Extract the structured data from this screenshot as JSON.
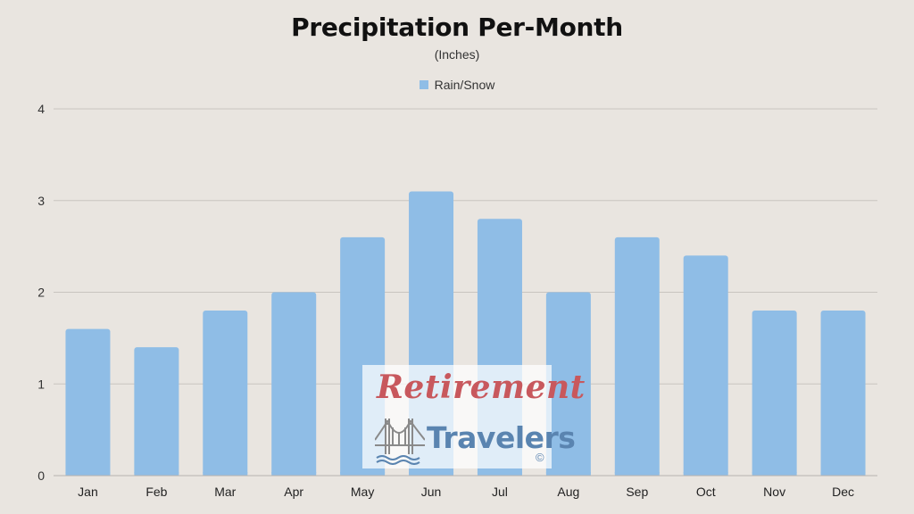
{
  "chart_data": {
    "type": "bar",
    "title": "Precipitation Per-Month",
    "subtitle": "(Inches)",
    "categories": [
      "Jan",
      "Feb",
      "Mar",
      "Apr",
      "May",
      "Jun",
      "Jul",
      "Aug",
      "Sep",
      "Oct",
      "Nov",
      "Dec"
    ],
    "series": [
      {
        "name": "Rain/Snow",
        "color": "#8fbde6",
        "values": [
          1.6,
          1.4,
          1.8,
          2.0,
          2.6,
          3.1,
          2.8,
          2.0,
          2.6,
          2.4,
          1.8,
          1.8
        ]
      }
    ],
    "ylim": [
      0,
      4
    ],
    "yticks": [
      "0",
      "1",
      "2",
      "3",
      "4"
    ],
    "grid": true,
    "legend_position": "top-center",
    "xlabel": "",
    "ylabel": ""
  },
  "watermark": {
    "line1": "Retirement",
    "line2": "Travelers",
    "copyright": "©",
    "icon": "bridge-icon"
  },
  "colors": {
    "background": "#e9e5e0",
    "gridline": "#c9c5c0",
    "bar": "#8fbde6",
    "watermark_red": "#c8585d",
    "watermark_blue": "#5a84b0"
  }
}
